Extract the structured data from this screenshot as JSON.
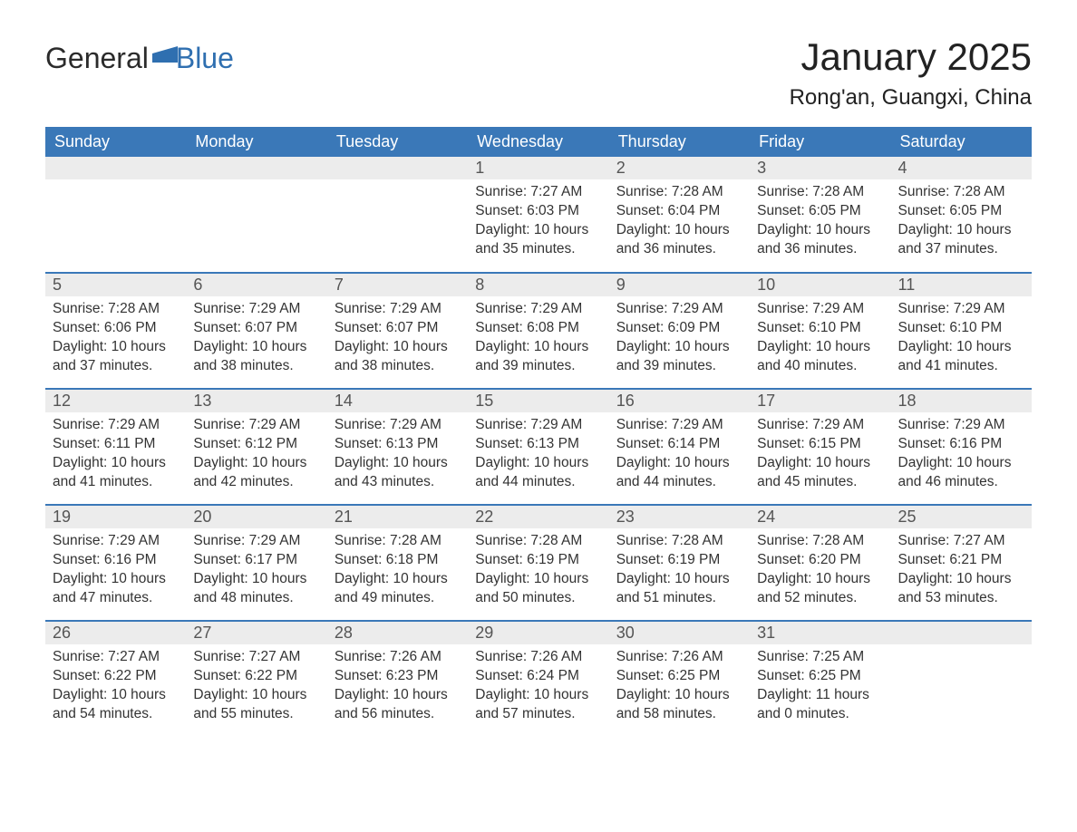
{
  "brand": {
    "word1": "General",
    "word2": "Blue",
    "flag_color": "#2f6fb0"
  },
  "title": "January 2025",
  "location": "Rong'an, Guangxi, China",
  "colors": {
    "header_bg": "#3a78b8",
    "header_text": "#ffffff",
    "row_divider": "#3a78b8",
    "daynum_bg": "#ececec",
    "daynum_text": "#555555",
    "body_text": "#333333",
    "page_bg": "#ffffff"
  },
  "typography": {
    "month_title_fontsize": 42,
    "location_fontsize": 24,
    "header_fontsize": 18,
    "daynum_fontsize": 18,
    "cell_fontsize": 15.5
  },
  "layout": {
    "columns": 7,
    "rows": 5,
    "aspect": "1188x918"
  },
  "weekday_headers": [
    "Sunday",
    "Monday",
    "Tuesday",
    "Wednesday",
    "Thursday",
    "Friday",
    "Saturday"
  ],
  "labels": {
    "sunrise": "Sunrise: ",
    "sunset": "Sunset: ",
    "daylight": "Daylight: "
  },
  "weeks": [
    [
      null,
      null,
      null,
      {
        "n": "1",
        "sunrise": "7:27 AM",
        "sunset": "6:03 PM",
        "daylight": "10 hours and 35 minutes."
      },
      {
        "n": "2",
        "sunrise": "7:28 AM",
        "sunset": "6:04 PM",
        "daylight": "10 hours and 36 minutes."
      },
      {
        "n": "3",
        "sunrise": "7:28 AM",
        "sunset": "6:05 PM",
        "daylight": "10 hours and 36 minutes."
      },
      {
        "n": "4",
        "sunrise": "7:28 AM",
        "sunset": "6:05 PM",
        "daylight": "10 hours and 37 minutes."
      }
    ],
    [
      {
        "n": "5",
        "sunrise": "7:28 AM",
        "sunset": "6:06 PM",
        "daylight": "10 hours and 37 minutes."
      },
      {
        "n": "6",
        "sunrise": "7:29 AM",
        "sunset": "6:07 PM",
        "daylight": "10 hours and 38 minutes."
      },
      {
        "n": "7",
        "sunrise": "7:29 AM",
        "sunset": "6:07 PM",
        "daylight": "10 hours and 38 minutes."
      },
      {
        "n": "8",
        "sunrise": "7:29 AM",
        "sunset": "6:08 PM",
        "daylight": "10 hours and 39 minutes."
      },
      {
        "n": "9",
        "sunrise": "7:29 AM",
        "sunset": "6:09 PM",
        "daylight": "10 hours and 39 minutes."
      },
      {
        "n": "10",
        "sunrise": "7:29 AM",
        "sunset": "6:10 PM",
        "daylight": "10 hours and 40 minutes."
      },
      {
        "n": "11",
        "sunrise": "7:29 AM",
        "sunset": "6:10 PM",
        "daylight": "10 hours and 41 minutes."
      }
    ],
    [
      {
        "n": "12",
        "sunrise": "7:29 AM",
        "sunset": "6:11 PM",
        "daylight": "10 hours and 41 minutes."
      },
      {
        "n": "13",
        "sunrise": "7:29 AM",
        "sunset": "6:12 PM",
        "daylight": "10 hours and 42 minutes."
      },
      {
        "n": "14",
        "sunrise": "7:29 AM",
        "sunset": "6:13 PM",
        "daylight": "10 hours and 43 minutes."
      },
      {
        "n": "15",
        "sunrise": "7:29 AM",
        "sunset": "6:13 PM",
        "daylight": "10 hours and 44 minutes."
      },
      {
        "n": "16",
        "sunrise": "7:29 AM",
        "sunset": "6:14 PM",
        "daylight": "10 hours and 44 minutes."
      },
      {
        "n": "17",
        "sunrise": "7:29 AM",
        "sunset": "6:15 PM",
        "daylight": "10 hours and 45 minutes."
      },
      {
        "n": "18",
        "sunrise": "7:29 AM",
        "sunset": "6:16 PM",
        "daylight": "10 hours and 46 minutes."
      }
    ],
    [
      {
        "n": "19",
        "sunrise": "7:29 AM",
        "sunset": "6:16 PM",
        "daylight": "10 hours and 47 minutes."
      },
      {
        "n": "20",
        "sunrise": "7:29 AM",
        "sunset": "6:17 PM",
        "daylight": "10 hours and 48 minutes."
      },
      {
        "n": "21",
        "sunrise": "7:28 AM",
        "sunset": "6:18 PM",
        "daylight": "10 hours and 49 minutes."
      },
      {
        "n": "22",
        "sunrise": "7:28 AM",
        "sunset": "6:19 PM",
        "daylight": "10 hours and 50 minutes."
      },
      {
        "n": "23",
        "sunrise": "7:28 AM",
        "sunset": "6:19 PM",
        "daylight": "10 hours and 51 minutes."
      },
      {
        "n": "24",
        "sunrise": "7:28 AM",
        "sunset": "6:20 PM",
        "daylight": "10 hours and 52 minutes."
      },
      {
        "n": "25",
        "sunrise": "7:27 AM",
        "sunset": "6:21 PM",
        "daylight": "10 hours and 53 minutes."
      }
    ],
    [
      {
        "n": "26",
        "sunrise": "7:27 AM",
        "sunset": "6:22 PM",
        "daylight": "10 hours and 54 minutes."
      },
      {
        "n": "27",
        "sunrise": "7:27 AM",
        "sunset": "6:22 PM",
        "daylight": "10 hours and 55 minutes."
      },
      {
        "n": "28",
        "sunrise": "7:26 AM",
        "sunset": "6:23 PM",
        "daylight": "10 hours and 56 minutes."
      },
      {
        "n": "29",
        "sunrise": "7:26 AM",
        "sunset": "6:24 PM",
        "daylight": "10 hours and 57 minutes."
      },
      {
        "n": "30",
        "sunrise": "7:26 AM",
        "sunset": "6:25 PM",
        "daylight": "10 hours and 58 minutes."
      },
      {
        "n": "31",
        "sunrise": "7:25 AM",
        "sunset": "6:25 PM",
        "daylight": "11 hours and 0 minutes."
      },
      null
    ]
  ]
}
